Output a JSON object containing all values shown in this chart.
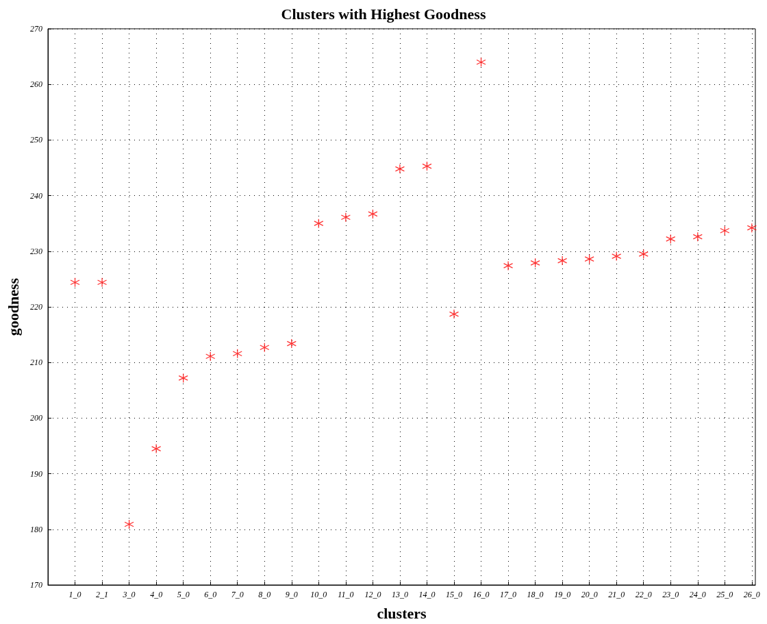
{
  "chart_data": {
    "type": "scatter",
    "title": "Clusters with Highest Goodness",
    "xlabel": "clusters",
    "ylabel": "goodness",
    "categories": [
      "1_0",
      "2_1",
      "3_0",
      "4_0",
      "5_0",
      "6_0",
      "7_0",
      "8_0",
      "9_0",
      "10_0",
      "11_0",
      "12_0",
      "13_0",
      "14_0",
      "15_0",
      "16_0",
      "17_0",
      "18_0",
      "19_0",
      "20_0",
      "21_0",
      "22_0",
      "23_0",
      "24_0",
      "25_0",
      "26_0"
    ],
    "values": [
      224.4,
      224.4,
      180.9,
      194.5,
      207.2,
      211.1,
      211.6,
      212.7,
      213.4,
      235.0,
      236.1,
      236.7,
      244.8,
      245.3,
      218.7,
      264.0,
      227.4,
      227.9,
      228.3,
      228.6,
      229.1,
      229.5,
      232.2,
      232.6,
      233.7,
      234.2
    ],
    "color": "#ff0000",
    "marker": "cross",
    "ylim": [
      170,
      270
    ],
    "yticks": [
      170,
      180,
      190,
      200,
      210,
      220,
      230,
      240,
      250,
      260,
      270
    ],
    "grid": true
  }
}
